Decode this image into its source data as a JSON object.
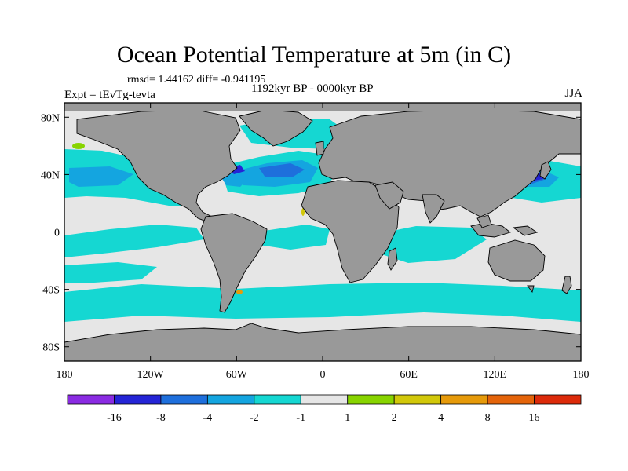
{
  "title": "Ocean Potential Temperature at 5m (in C)",
  "stats_line": "rmsd= 1.44162 diff= -0.941195",
  "experiment": "Expt = tEvTg-tevta",
  "period": "1192kyr BP - 0000kyr BP",
  "season": "JJA",
  "map": {
    "lon_range": [
      -180,
      180
    ],
    "lat_range": [
      -90,
      90
    ],
    "lat_ticks": [
      {
        "value": 80,
        "label": "80N"
      },
      {
        "value": 40,
        "label": "40N"
      },
      {
        "value": 0,
        "label": "0"
      },
      {
        "value": -40,
        "label": "40S"
      },
      {
        "value": -80,
        "label": "80S"
      }
    ],
    "lon_ticks": [
      {
        "value": -180,
        "label": "180"
      },
      {
        "value": -120,
        "label": "120W"
      },
      {
        "value": -60,
        "label": "60W"
      },
      {
        "value": 0,
        "label": "0"
      },
      {
        "value": 60,
        "label": "60E"
      },
      {
        "value": 120,
        "label": "120E"
      },
      {
        "value": 180,
        "label": "180"
      }
    ],
    "colors": {
      "land": "#999999",
      "ocean_neutral": "#e6e6e6",
      "coast": "#000000"
    }
  },
  "colorbar": {
    "bins": [
      {
        "color": "#8a2be2"
      },
      {
        "color": "#2424d6"
      },
      {
        "color": "#1e6fdc"
      },
      {
        "color": "#14a5e0"
      },
      {
        "color": "#15d7d2"
      },
      {
        "color": "#e6e6e6"
      },
      {
        "color": "#88d400"
      },
      {
        "color": "#d2c80a"
      },
      {
        "color": "#e69a0a"
      },
      {
        "color": "#e4640a"
      },
      {
        "color": "#dc2a0a"
      }
    ],
    "labels": [
      "-16",
      "-8",
      "-4",
      "-2",
      "-1",
      "1",
      "2",
      "4",
      "8",
      "16"
    ]
  }
}
